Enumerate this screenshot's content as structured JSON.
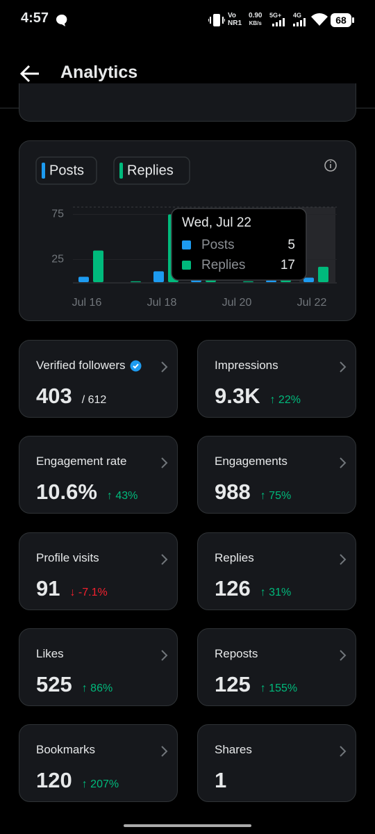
{
  "status_bar": {
    "time": "4:57",
    "network": [
      "Vo",
      "NR1"
    ],
    "speed": [
      "0.90",
      "KB/s"
    ],
    "signal1": "5G+",
    "signal2": "4G",
    "battery": "68"
  },
  "header": {
    "title": "Analytics"
  },
  "chart_data": {
    "type": "bar",
    "categories": [
      "Jul 16",
      null,
      "Jul 18",
      null,
      "Jul 20",
      null,
      "Jul 22"
    ],
    "series": [
      {
        "name": "Posts",
        "color": "#1d9bf0",
        "values": [
          6,
          0,
          12,
          5,
          0,
          2,
          5
        ]
      },
      {
        "name": "Replies",
        "color": "#00ba7c",
        "values": [
          35,
          1,
          75,
          4,
          1,
          4,
          17
        ]
      }
    ],
    "ylim": [
      0,
      80
    ],
    "yticks": [
      25,
      75
    ],
    "grid": true,
    "tooltip": {
      "title": "Wed, Jul 22"
    }
  },
  "metrics": [
    {
      "label": "Verified followers",
      "value": "403",
      "total": "/ 612",
      "badge_color": "#1d9bf0"
    },
    {
      "label": "Impressions",
      "value": "9.3K",
      "change": "↑ 22%",
      "change_color": "#00ba7c"
    },
    {
      "label": "Engagement rate",
      "value": "10.6%",
      "change": "↑ 43%",
      "change_color": "#00ba7c"
    },
    {
      "label": "Engagements",
      "value": "988",
      "change": "↑ 75%",
      "change_color": "#00ba7c"
    },
    {
      "label": "Profile visits",
      "value": "91",
      "change": "↓ -7.1%",
      "change_color": "#f4212e"
    },
    {
      "label": "Replies",
      "value": "126",
      "change": "↑ 31%",
      "change_color": "#00ba7c"
    },
    {
      "label": "Likes",
      "value": "525",
      "change": "↑ 86%",
      "change_color": "#00ba7c"
    },
    {
      "label": "Reposts",
      "value": "125",
      "change": "↑ 155%",
      "change_color": "#00ba7c"
    },
    {
      "label": "Bookmarks",
      "value": "120",
      "change": "↑ 207%",
      "change_color": "#00ba7c"
    },
    {
      "label": "Shares",
      "value": "1"
    }
  ]
}
